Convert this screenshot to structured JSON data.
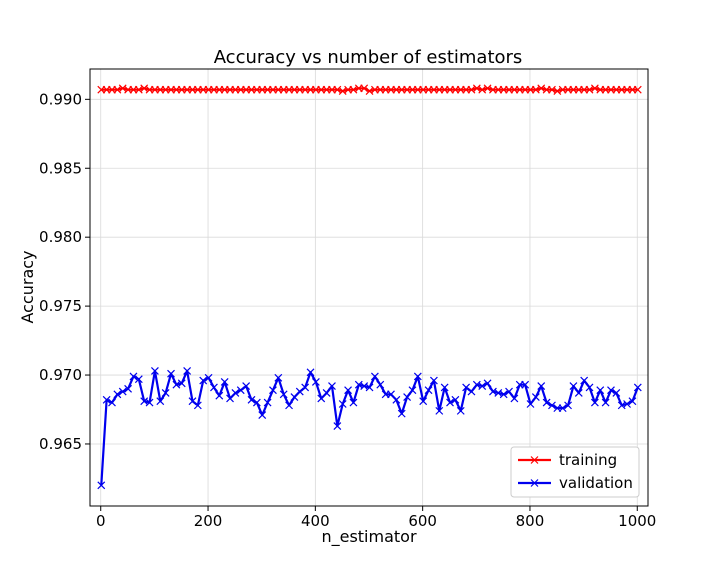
{
  "chart_data": {
    "type": "line",
    "title": "Accuracy vs number of estimators",
    "xlabel": "n_estimator",
    "ylabel": "Accuracy",
    "xlim": [
      -20,
      1020
    ],
    "ylim": [
      0.9605,
      0.9922
    ],
    "xticks": [
      0,
      200,
      400,
      600,
      800,
      1000
    ],
    "yticks": [
      0.965,
      0.97,
      0.975,
      0.98,
      0.985,
      0.99
    ],
    "xtick_labels": [
      "0",
      "200",
      "400",
      "600",
      "800",
      "1000"
    ],
    "ytick_labels": [
      "0.965",
      "0.970",
      "0.975",
      "0.980",
      "0.985",
      "0.990"
    ],
    "grid": true,
    "legend_position": "lower-right",
    "x": [
      1,
      11,
      21,
      31,
      41,
      51,
      61,
      71,
      81,
      91,
      101,
      111,
      121,
      131,
      141,
      151,
      161,
      171,
      181,
      191,
      201,
      211,
      221,
      231,
      241,
      251,
      261,
      271,
      281,
      291,
      301,
      311,
      321,
      331,
      341,
      351,
      361,
      371,
      381,
      391,
      401,
      411,
      421,
      431,
      441,
      451,
      461,
      471,
      481,
      491,
      501,
      511,
      521,
      531,
      541,
      551,
      561,
      571,
      581,
      591,
      601,
      611,
      621,
      631,
      641,
      651,
      661,
      671,
      681,
      691,
      701,
      711,
      721,
      731,
      741,
      751,
      761,
      771,
      781,
      791,
      801,
      811,
      821,
      831,
      841,
      851,
      861,
      871,
      881,
      891,
      901,
      911,
      921,
      931,
      941,
      951,
      961,
      971,
      981,
      991,
      1001
    ],
    "series": [
      {
        "name": "training",
        "color": "#ff0000",
        "marker": "x",
        "values": [
          0.9907,
          0.9907,
          0.9907,
          0.9907,
          0.9908,
          0.9907,
          0.9907,
          0.9907,
          0.9908,
          0.9907,
          0.9907,
          0.9907,
          0.9907,
          0.9907,
          0.9907,
          0.9907,
          0.9907,
          0.9907,
          0.9907,
          0.9907,
          0.9907,
          0.9907,
          0.9907,
          0.9907,
          0.9907,
          0.9907,
          0.9907,
          0.9907,
          0.9907,
          0.9907,
          0.9907,
          0.9907,
          0.9907,
          0.9907,
          0.9907,
          0.9907,
          0.9907,
          0.9907,
          0.9907,
          0.9907,
          0.9907,
          0.9907,
          0.9907,
          0.9907,
          0.9907,
          0.9906,
          0.9907,
          0.9907,
          0.9908,
          0.9908,
          0.9906,
          0.9907,
          0.9907,
          0.9907,
          0.9907,
          0.9907,
          0.9907,
          0.9907,
          0.9907,
          0.9907,
          0.9907,
          0.9907,
          0.9907,
          0.9907,
          0.9907,
          0.9907,
          0.9907,
          0.9907,
          0.9907,
          0.9907,
          0.9908,
          0.9907,
          0.9908,
          0.9907,
          0.9907,
          0.9907,
          0.9907,
          0.9907,
          0.9907,
          0.9907,
          0.9907,
          0.9907,
          0.9908,
          0.9907,
          0.9907,
          0.9906,
          0.9907,
          0.9907,
          0.9907,
          0.9907,
          0.9907,
          0.9907,
          0.9908,
          0.9907,
          0.9907,
          0.9907,
          0.9907,
          0.9907,
          0.9907,
          0.9907,
          0.9907
        ]
      },
      {
        "name": "validation",
        "color": "#0000ee",
        "marker": "x",
        "values": [
          0.962,
          0.9682,
          0.968,
          0.9686,
          0.9688,
          0.969,
          0.9699,
          0.9697,
          0.9681,
          0.968,
          0.9703,
          0.9681,
          0.9687,
          0.9701,
          0.9693,
          0.9694,
          0.9703,
          0.9681,
          0.9678,
          0.9696,
          0.9698,
          0.9691,
          0.9685,
          0.9695,
          0.9683,
          0.9687,
          0.9689,
          0.9692,
          0.9682,
          0.968,
          0.9671,
          0.968,
          0.9689,
          0.9698,
          0.9686,
          0.9678,
          0.9684,
          0.9688,
          0.9691,
          0.9702,
          0.9695,
          0.9683,
          0.9687,
          0.9692,
          0.9663,
          0.9679,
          0.9689,
          0.968,
          0.9693,
          0.9692,
          0.9691,
          0.9699,
          0.9693,
          0.9686,
          0.9686,
          0.9682,
          0.9672,
          0.9684,
          0.9689,
          0.9699,
          0.9681,
          0.9689,
          0.9696,
          0.9674,
          0.9691,
          0.968,
          0.9682,
          0.9674,
          0.9691,
          0.9688,
          0.9693,
          0.9692,
          0.9694,
          0.9688,
          0.9687,
          0.9686,
          0.9688,
          0.9683,
          0.9693,
          0.9693,
          0.9679,
          0.9684,
          0.9692,
          0.968,
          0.9678,
          0.9676,
          0.9676,
          0.9678,
          0.9692,
          0.9687,
          0.9696,
          0.9691,
          0.968,
          0.9689,
          0.968,
          0.9689,
          0.9687,
          0.9678,
          0.9679,
          0.9681,
          0.9691
        ]
      }
    ]
  }
}
